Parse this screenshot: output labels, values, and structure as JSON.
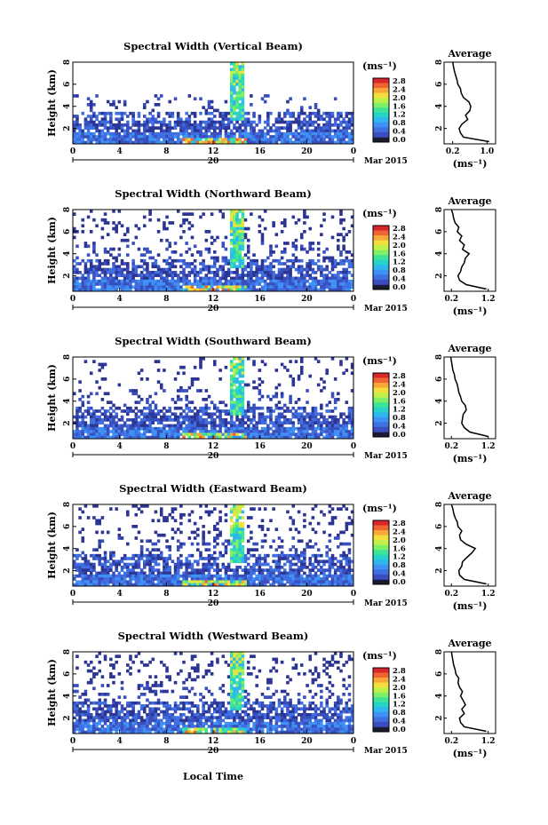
{
  "colormap": [
    "#2c3594",
    "#3a4fbe",
    "#3f6fe0",
    "#3f92f5",
    "#2fb6ec",
    "#27d2c8",
    "#3ee39a",
    "#7ff065",
    "#c2f04a",
    "#f3df3c",
    "#f8a838",
    "#ef6430",
    "#d8262a"
  ],
  "xlabel": "Local Time",
  "avg_title": "Average",
  "avg_unit": "(ms⁻¹)",
  "colorbar_unit": "(ms⁻¹)",
  "colorbar_ticks": [
    "2.8",
    "2.4",
    "2.0",
    "1.6",
    "1.2",
    "0.8",
    "0.4",
    "0.0"
  ],
  "colorbar_range": [
    0.0,
    2.8
  ],
  "x_ticks": [
    "0",
    "4",
    "8",
    "12",
    "16",
    "20",
    "0"
  ],
  "date_mark": "20",
  "month_label": "Mar 2015",
  "y_ticks": [
    "8",
    "6",
    "4",
    "2"
  ],
  "ylabel": "Height (km)",
  "height_range_km": [
    0.6,
    8.0
  ],
  "time_range_h": [
    0,
    24
  ],
  "chart_data": [
    {
      "type": "heatmap",
      "title": "Spectral Width (Vertical Beam)",
      "ylabel": "Height (km)",
      "avg_xticks": [
        "0.2",
        "1.0"
      ],
      "avg_xlim": [
        0.0,
        1.2
      ],
      "average_profile": {
        "height_km": [
          0.8,
          1.2,
          1.6,
          2.0,
          2.4,
          2.8,
          3.2,
          3.6,
          4.0,
          4.4,
          4.8,
          5.2,
          5.6,
          6.0,
          6.4,
          6.8,
          7.2,
          7.6,
          8.0
        ],
        "width": [
          1.05,
          0.45,
          0.38,
          0.35,
          0.42,
          0.55,
          0.5,
          0.6,
          0.62,
          0.58,
          0.45,
          0.4,
          0.38,
          0.32,
          0.3,
          0.27,
          0.24,
          0.22,
          0.2
        ]
      }
    },
    {
      "type": "heatmap",
      "title": "Spectral Width (Northward Beam)",
      "ylabel": "Height (km)",
      "avg_xticks": [
        "0.2",
        "1.2"
      ],
      "avg_xlim": [
        0.0,
        1.4
      ],
      "average_profile": {
        "height_km": [
          0.8,
          1.2,
          1.6,
          2.0,
          2.4,
          2.8,
          3.2,
          3.6,
          4.0,
          4.4,
          4.8,
          5.2,
          5.6,
          6.0,
          6.4,
          6.8,
          7.2,
          7.6,
          8.0
        ],
        "width": [
          1.15,
          0.6,
          0.42,
          0.38,
          0.45,
          0.48,
          0.55,
          0.58,
          0.68,
          0.5,
          0.55,
          0.42,
          0.48,
          0.36,
          0.4,
          0.3,
          0.26,
          0.24,
          0.2
        ]
      }
    },
    {
      "type": "heatmap",
      "title": "Spectral Width (Southward Beam)",
      "ylabel": "Height (km)",
      "avg_xticks": [
        "0.2",
        "1.2"
      ],
      "avg_xlim": [
        0.0,
        1.4
      ],
      "average_profile": {
        "height_km": [
          0.8,
          1.2,
          1.6,
          2.0,
          2.4,
          2.8,
          3.2,
          3.6,
          4.0,
          4.4,
          4.8,
          5.2,
          5.6,
          6.0,
          6.4,
          6.8,
          7.2,
          7.6,
          8.0
        ],
        "width": [
          1.2,
          0.7,
          0.55,
          0.48,
          0.5,
          0.52,
          0.6,
          0.58,
          0.48,
          0.45,
          0.4,
          0.38,
          0.35,
          0.3,
          0.28,
          0.24,
          0.22,
          0.2,
          0.18
        ]
      }
    },
    {
      "type": "heatmap",
      "title": "Spectral Width (Eastward Beam)",
      "ylabel": "Height (km)",
      "avg_xticks": [
        "0.2",
        "1.2"
      ],
      "avg_xlim": [
        0.0,
        1.4
      ],
      "average_profile": {
        "height_km": [
          0.8,
          1.2,
          1.6,
          2.0,
          2.4,
          2.8,
          3.2,
          3.6,
          4.0,
          4.4,
          4.8,
          5.2,
          5.6,
          6.0,
          6.4,
          6.8,
          7.2,
          7.6,
          8.0
        ],
        "width": [
          1.15,
          0.55,
          0.42,
          0.4,
          0.48,
          0.5,
          0.62,
          0.75,
          0.85,
          0.6,
          0.45,
          0.42,
          0.48,
          0.38,
          0.36,
          0.3,
          0.26,
          0.24,
          0.2
        ]
      }
    },
    {
      "type": "heatmap",
      "title": "Spectral Width (Westward Beam)",
      "ylabel": "Height (km)",
      "avg_xticks": [
        "0.2",
        "1.2"
      ],
      "avg_xlim": [
        0.0,
        1.4
      ],
      "average_profile": {
        "height_km": [
          0.8,
          1.2,
          1.6,
          2.0,
          2.4,
          2.8,
          3.2,
          3.6,
          4.0,
          4.4,
          4.8,
          5.2,
          5.6,
          6.0,
          6.4,
          6.8,
          7.2,
          7.6,
          8.0
        ],
        "width": [
          1.15,
          0.55,
          0.45,
          0.42,
          0.55,
          0.48,
          0.58,
          0.52,
          0.45,
          0.5,
          0.42,
          0.38,
          0.4,
          0.32,
          0.3,
          0.26,
          0.24,
          0.22,
          0.2
        ]
      }
    }
  ]
}
